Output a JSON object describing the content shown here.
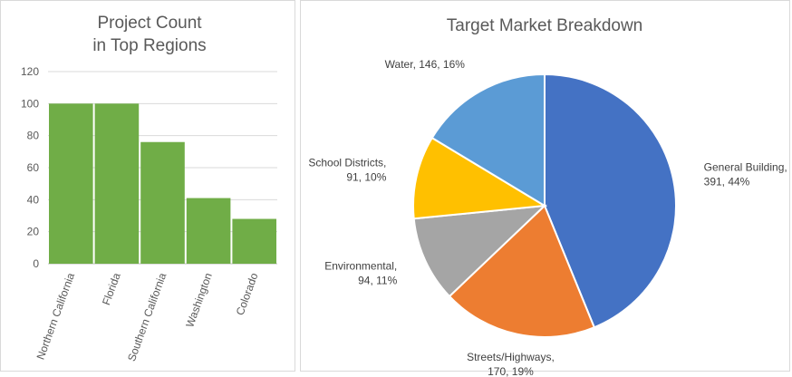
{
  "chart_data": [
    {
      "type": "bar",
      "title": [
        "Project Count",
        "in Top Regions"
      ],
      "categories": [
        "Northern California",
        "Florida",
        "Southern California",
        "Washington",
        "Colorado"
      ],
      "values": [
        100,
        100,
        76,
        41,
        28
      ],
      "ylim": [
        0,
        120
      ],
      "yticks": [
        0,
        20,
        40,
        60,
        80,
        100,
        120
      ],
      "grid": true,
      "color": "#70ad47"
    },
    {
      "type": "pie",
      "title": "Target Market Breakdown",
      "slices": [
        {
          "label": "General Building",
          "value": 391,
          "percent": "44%",
          "color": "#4472c4",
          "text": [
            "General Building,",
            "391, 44%"
          ]
        },
        {
          "label": "Streets/Highways",
          "value": 170,
          "percent": "19%",
          "color": "#ed7d31",
          "text": [
            "Streets/Highways,",
            "170, 19%"
          ]
        },
        {
          "label": "Environmental",
          "value": 94,
          "percent": "11%",
          "color": "#a5a5a5",
          "text": [
            "Environmental,",
            "94, 11%"
          ]
        },
        {
          "label": "School Districts",
          "value": 91,
          "percent": "10%",
          "color": "#ffc000",
          "text": [
            "School Districts,",
            "91, 10%"
          ]
        },
        {
          "label": "Water",
          "value": 146,
          "percent": "16%",
          "color": "#5b9bd5",
          "text": [
            "Water, 146, 16%"
          ]
        }
      ]
    }
  ]
}
